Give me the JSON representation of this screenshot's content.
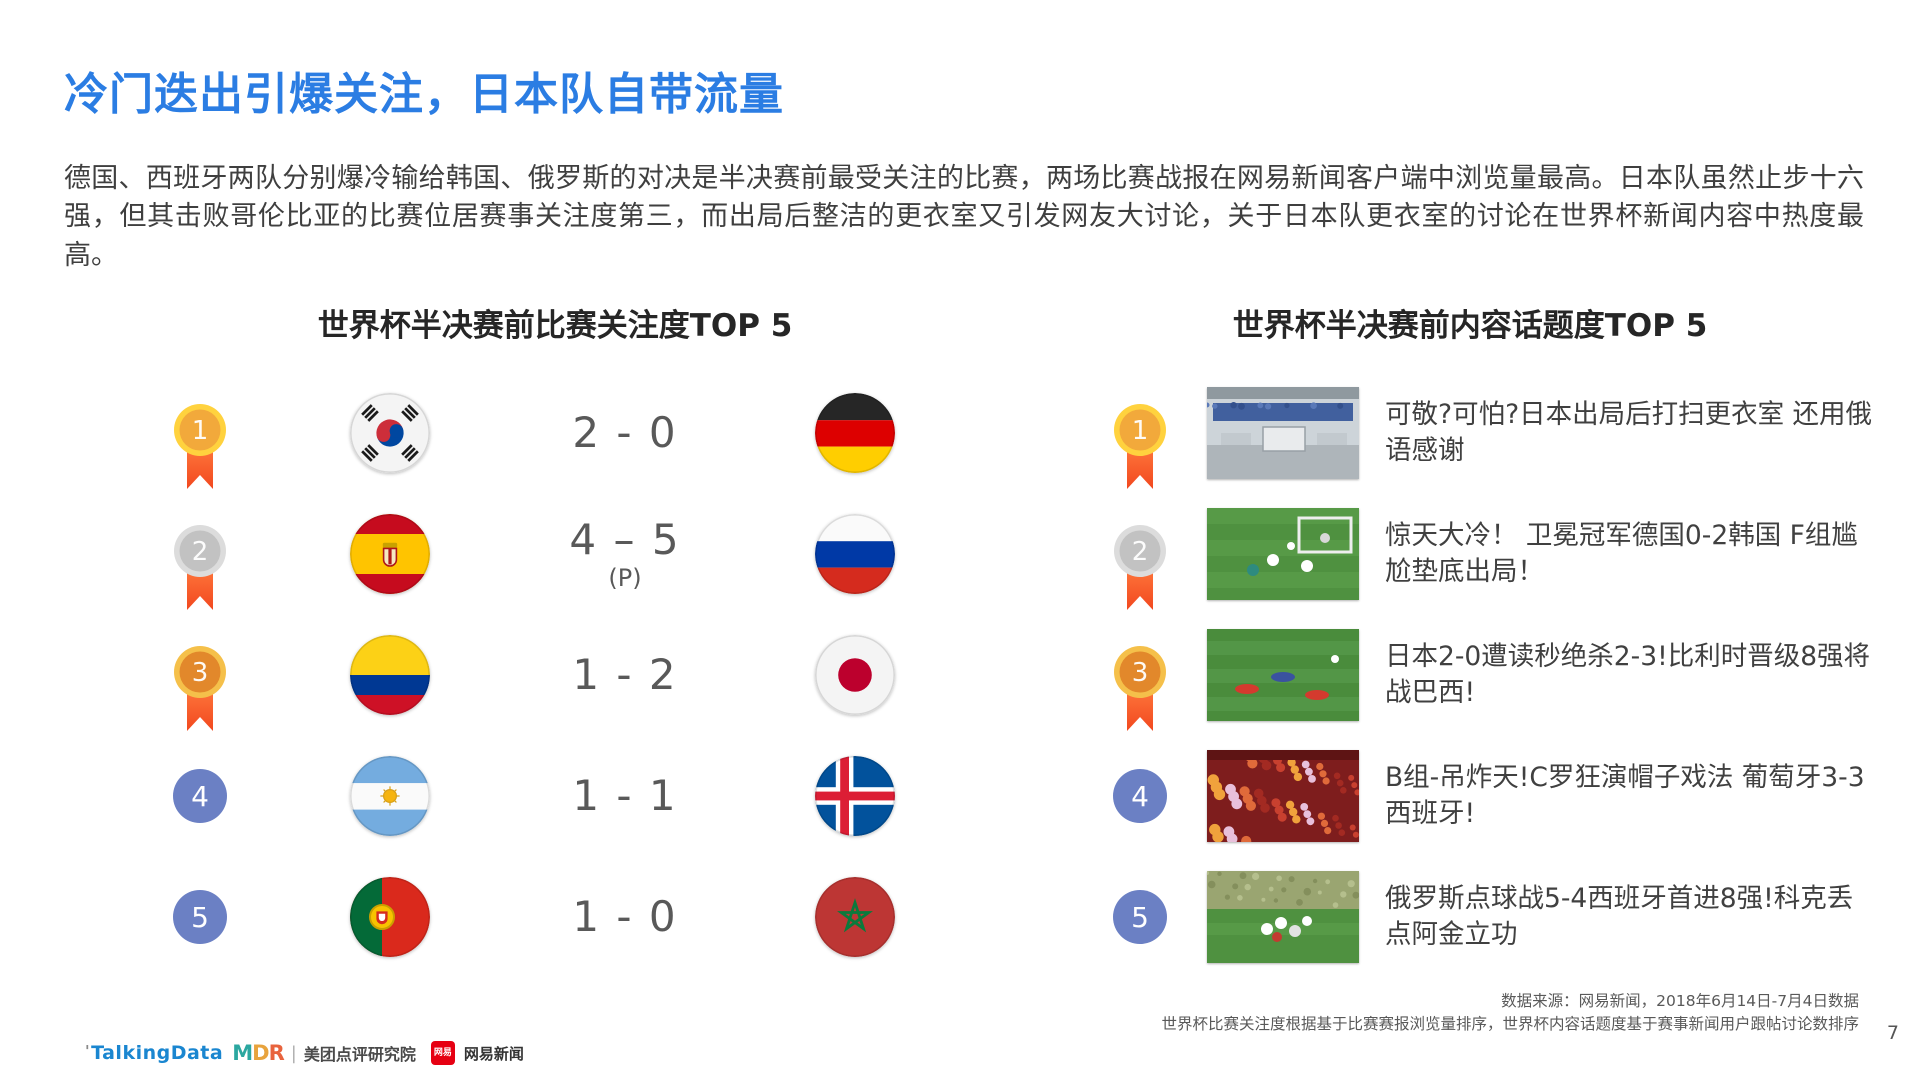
{
  "page": {
    "title": "冷门迭出引爆关注，日本队自带流量",
    "body": "德国、西班牙两队分别爆冷输给韩国、俄罗斯的对决是半决赛前最受关注的比赛，两场比赛战报在网易新闻客户端中浏览量最高。日本队虽然止步十六强，但其击败哥伦比亚的比赛位居赛事关注度第三，而出局后整洁的更衣室又引发网友大讨论，关于日本队更衣室的讨论在世界杯新闻内容中热度最高。",
    "page_number": "7"
  },
  "left_panel": {
    "title": "世界杯半决赛前比赛关注度TOP 5",
    "rows": [
      {
        "rank": "1",
        "badge": "gold-medal",
        "home_flag": "south-korea",
        "score": "2 - 0",
        "score_note": "",
        "away_flag": "germany"
      },
      {
        "rank": "2",
        "badge": "silver-medal",
        "home_flag": "spain",
        "score": "4 – 5",
        "score_note": "(P)",
        "away_flag": "russia"
      },
      {
        "rank": "3",
        "badge": "bronze-medal",
        "home_flag": "colombia",
        "score": "1 - 2",
        "score_note": "",
        "away_flag": "japan"
      },
      {
        "rank": "4",
        "badge": "blue-circle",
        "home_flag": "argentina",
        "score": "1 - 1",
        "score_note": "",
        "away_flag": "iceland"
      },
      {
        "rank": "5",
        "badge": "blue-circle",
        "home_flag": "portugal",
        "score": "1 - 0",
        "score_note": "",
        "away_flag": "morocco"
      }
    ]
  },
  "right_panel": {
    "title": "世界杯半决赛前内容话题度TOP 5",
    "rows": [
      {
        "rank": "1",
        "badge": "gold-medal",
        "thumb": "locker-room",
        "headline": "可敬?可怕?日本出局后打扫更衣室 还用俄语感谢"
      },
      {
        "rank": "2",
        "badge": "silver-medal",
        "thumb": "germany-korea-match",
        "headline": "惊天大冷！ 卫冕冠军德国0-2韩国 F组尴尬垫底出局！"
      },
      {
        "rank": "3",
        "badge": "bronze-medal",
        "thumb": "japan-belgium-match",
        "headline": "日本2-0遭读秒绝杀2-3!比利时晋级8强将战巴西!"
      },
      {
        "rank": "4",
        "badge": "blue-circle",
        "thumb": "portugal-spain-fans",
        "headline": "B组-吊炸天!C罗狂演帽子戏法 葡萄牙3-3西班牙!"
      },
      {
        "rank": "5",
        "badge": "blue-circle",
        "thumb": "russia-celebration",
        "headline": "俄罗斯点球战5-4西班牙首进8强!科克丢点阿金立功"
      }
    ]
  },
  "footer": {
    "source_line1": "数据来源：网易新闻，2018年6月14日-7月4日数据",
    "source_line2": "世界杯比赛关注度根据基于比赛赛报浏览量排序，世界杯内容话题度基于赛事新闻用户跟帖讨论数排序",
    "logos": {
      "talkingdata": "TalkingData",
      "mdr_letters": [
        "M",
        "D",
        "R"
      ],
      "meituan": "美团点评研究院",
      "netease_badge": "网易",
      "netease": "网易新闻"
    }
  },
  "colors": {
    "title_blue": "#2b7de3",
    "rank_circle_blue": "#6b80c4",
    "ribbon_orange": "#f2481f",
    "medal_gold_ring": "#ffd23e",
    "medal_gold": "#f2a93b",
    "medal_silver_ring": "#dcdcdc",
    "medal_silver": "#c2c2c2",
    "medal_bronze_ring": "#f5c04a",
    "medal_bronze": "#e2882b",
    "score_gray": "#595959"
  }
}
